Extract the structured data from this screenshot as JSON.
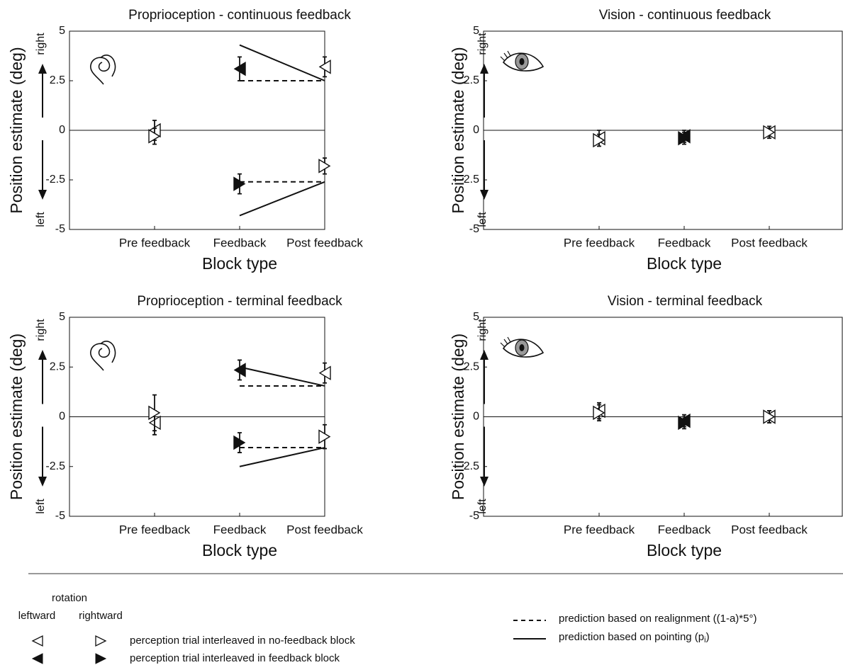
{
  "chart_data": [
    {
      "type": "errorbar",
      "title": "Proprioception - continuous feedback",
      "xlabel": "Block type",
      "ylabel": "Position estimate (deg)",
      "up_label": "right",
      "down_label": "left",
      "icon": "hand",
      "zero_line": true,
      "categories": [
        "Pre feedback",
        "Feedback",
        "Post feedback"
      ],
      "ylim": [
        -5,
        5
      ],
      "yticks": [
        -5,
        -2.5,
        0,
        2.5,
        5
      ],
      "series": [
        {
          "marker": "left-open",
          "values": [
            0,
            null,
            3.2
          ],
          "errors": [
            0.5,
            null,
            0.5
          ]
        },
        {
          "marker": "right-open",
          "values": [
            -0.3,
            null,
            -1.8
          ],
          "errors": [
            0.4,
            null,
            0.4
          ]
        },
        {
          "marker": "left-filled",
          "values": [
            null,
            3.1,
            null
          ],
          "errors": [
            null,
            0.6,
            null
          ]
        },
        {
          "marker": "right-filled",
          "values": [
            null,
            -2.7,
            null
          ],
          "errors": [
            null,
            0.5,
            null
          ]
        }
      ],
      "predictions": [
        {
          "style": "dashed",
          "values": [
            null,
            2.5,
            2.5
          ]
        },
        {
          "style": "dashed",
          "values": [
            null,
            -2.6,
            -2.6
          ]
        },
        {
          "style": "solid",
          "values": [
            null,
            4.3,
            2.5
          ]
        },
        {
          "style": "solid",
          "values": [
            null,
            -4.3,
            -2.6
          ]
        }
      ]
    },
    {
      "type": "errorbar",
      "title": "Vision - continuous feedback",
      "xlabel": "Block type",
      "ylabel": "Position estimate (deg)",
      "up_label": "right",
      "down_label": "left",
      "icon": "eye",
      "zero_line": true,
      "categories": [
        "Pre feedback",
        "Feedback",
        "Post feedback"
      ],
      "ylim": [
        -5,
        5
      ],
      "yticks": [
        -5,
        -2.5,
        0,
        2.5,
        5
      ],
      "series": [
        {
          "marker": "left-open",
          "values": [
            -0.4,
            null,
            -0.1
          ],
          "errors": [
            0.4,
            null,
            0.3
          ]
        },
        {
          "marker": "right-open",
          "values": [
            -0.5,
            null,
            -0.1
          ],
          "errors": [
            0.3,
            null,
            0.2
          ]
        },
        {
          "marker": "left-filled",
          "values": [
            null,
            -0.3,
            null
          ],
          "errors": [
            null,
            0.3,
            null
          ]
        },
        {
          "marker": "right-filled",
          "values": [
            null,
            -0.4,
            null
          ],
          "errors": [
            null,
            0.3,
            null
          ]
        }
      ],
      "predictions": []
    },
    {
      "type": "errorbar",
      "title": "Proprioception - terminal feedback",
      "xlabel": "Block type",
      "ylabel": "Position estimate (deg)",
      "up_label": "right",
      "down_label": "left",
      "icon": "hand",
      "zero_line": true,
      "categories": [
        "Pre feedback",
        "Feedback",
        "Post feedback"
      ],
      "ylim": [
        -5,
        5
      ],
      "yticks": [
        -5,
        -2.5,
        0,
        2.5,
        5
      ],
      "series": [
        {
          "marker": "left-open",
          "values": [
            -0.3,
            null,
            2.2
          ],
          "errors": [
            0.6,
            null,
            0.5
          ]
        },
        {
          "marker": "right-open",
          "values": [
            0.2,
            null,
            -1.0
          ],
          "errors": [
            0.9,
            null,
            0.6
          ]
        },
        {
          "marker": "left-filled",
          "values": [
            null,
            2.35,
            null
          ],
          "errors": [
            null,
            0.5,
            null
          ]
        },
        {
          "marker": "right-filled",
          "values": [
            null,
            -1.3,
            null
          ],
          "errors": [
            null,
            0.5,
            null
          ]
        }
      ],
      "predictions": [
        {
          "style": "dashed",
          "values": [
            null,
            1.55,
            1.55
          ]
        },
        {
          "style": "dashed",
          "values": [
            null,
            -1.55,
            -1.55
          ]
        },
        {
          "style": "solid",
          "values": [
            null,
            2.5,
            1.55
          ]
        },
        {
          "style": "solid",
          "values": [
            null,
            -2.5,
            -1.55
          ]
        }
      ]
    },
    {
      "type": "errorbar",
      "title": "Vision - terminal feedback",
      "xlabel": "Block type",
      "ylabel": "Position estimate (deg)",
      "up_label": "right",
      "down_label": "left",
      "icon": "eye",
      "zero_line": true,
      "categories": [
        "Pre feedback",
        "Feedback",
        "Post feedback"
      ],
      "ylim": [
        -5,
        5
      ],
      "yticks": [
        -5,
        -2.5,
        0,
        2.5,
        5
      ],
      "series": [
        {
          "marker": "left-open",
          "values": [
            0.3,
            null,
            0
          ],
          "errors": [
            0.4,
            null,
            0.3
          ]
        },
        {
          "marker": "right-open",
          "values": [
            0.2,
            null,
            0
          ],
          "errors": [
            0.4,
            null,
            0.3
          ]
        },
        {
          "marker": "left-filled",
          "values": [
            null,
            -0.2,
            null
          ],
          "errors": [
            null,
            0.3,
            null
          ]
        },
        {
          "marker": "right-filled",
          "values": [
            null,
            -0.3,
            null
          ],
          "errors": [
            null,
            0.3,
            null
          ]
        }
      ],
      "predictions": []
    }
  ],
  "legend": {
    "heading": "rotation",
    "left_column": "leftward",
    "right_column": "rightward",
    "open_label": "perception trial interleaved in no-feedback block",
    "filled_label": "perception trial interleaved in feedback block",
    "dashed_label": "prediction based on realignment ((1-a)*5°)",
    "solid_label": "prediction based on pointing (p",
    "solid_sub": "i",
    "solid_end": ")"
  }
}
